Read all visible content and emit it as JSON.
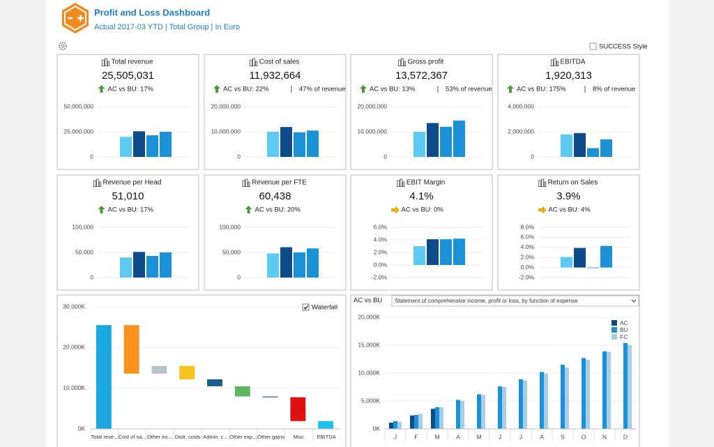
{
  "header": {
    "title": "Profit and Loss Dashboard",
    "subtitle": "Actual 2017-03 YTD | Total Group | In Euro"
  },
  "style_toggle": {
    "label": "SUCCESS Style",
    "checked": false
  },
  "kpis": [
    {
      "title": "Total revenue",
      "value": "25,505,031",
      "comparison": "AC vs BU: 17%",
      "arrow": "up",
      "bars": [
        20000000,
        25500000,
        21500000,
        25000000
      ],
      "colors": [
        "#5ccaf2",
        "#0d4b8a",
        "#1b92d8",
        "#1b92d8"
      ],
      "ylim": [
        0,
        50000000
      ],
      "yticks": [
        0,
        {
          "value": 25000000,
          "label": "25,000,000"
        },
        {
          "value": 50000000,
          "label": "50,000,000"
        }
      ]
    },
    {
      "title": "Cost of sales",
      "value": "11,932,664",
      "comparison": "AC vs BU: 22%",
      "share": "47% of revenue",
      "arrow": "up",
      "bars": [
        10000000,
        11900000,
        9800000,
        10500000
      ],
      "colors": [
        "#5ccaf2",
        "#0d4b8a",
        "#1b92d8",
        "#1b92d8"
      ],
      "ylim": [
        0,
        20000000
      ],
      "yticks": [
        0,
        {
          "value": 10000000,
          "label": "10,000,000"
        },
        {
          "value": 20000000,
          "label": "20,000,000"
        }
      ]
    },
    {
      "title": "Gross profit",
      "value": "13,572,367",
      "comparison": "AC vs BU: 13%",
      "share": "53% of revenue",
      "arrow": "up",
      "bars": [
        10000000,
        13500000,
        12000000,
        14500000
      ],
      "colors": [
        "#5ccaf2",
        "#0d4b8a",
        "#1b92d8",
        "#1b92d8"
      ],
      "ylim": [
        0,
        20000000
      ],
      "yticks": [
        0,
        {
          "value": 10000000,
          "label": "10,000,000"
        },
        {
          "value": 20000000,
          "label": "20,000,000"
        }
      ]
    },
    {
      "title": "EBITDA",
      "value": "1,920,313",
      "comparison": "AC vs BU: 175%",
      "share": "8% of revenue",
      "arrow": "up",
      "bars": [
        1800000,
        1900000,
        700000,
        1400000
      ],
      "colors": [
        "#5ccaf2",
        "#0d4b8a",
        "#1b92d8",
        "#1b92d8"
      ],
      "ylim": [
        0,
        4000000
      ],
      "yticks": [
        0,
        {
          "value": 2000000,
          "label": "2,000,000"
        },
        {
          "value": 4000000,
          "label": "4,000,000"
        }
      ]
    },
    {
      "title": "Revenue per Head",
      "value": "51,010",
      "comparison": "AC vs BU: 17%",
      "arrow": "up",
      "bars": [
        40000,
        51000,
        43000,
        50000
      ],
      "colors": [
        "#5ccaf2",
        "#0d4b8a",
        "#1b92d8",
        "#1b92d8"
      ],
      "ylim": [
        0,
        100000
      ],
      "yticks": [
        0,
        {
          "value": 50000,
          "label": "50,000"
        },
        {
          "value": 100000,
          "label": "100,000"
        }
      ]
    },
    {
      "title": "Revenue per FTE",
      "value": "60,438",
      "comparison": "AC vs BU: 20%",
      "arrow": "up",
      "bars": [
        48000,
        60400,
        50000,
        58000
      ],
      "colors": [
        "#5ccaf2",
        "#0d4b8a",
        "#1b92d8",
        "#1b92d8"
      ],
      "ylim": [
        0,
        100000
      ],
      "yticks": [
        0,
        {
          "value": 50000,
          "label": "50,000"
        },
        {
          "value": 100000,
          "label": "100,000"
        }
      ]
    },
    {
      "title": "EBIT Margin",
      "value": "4.1%",
      "comparison": "AC vs BU: 0%",
      "arrow": "right",
      "bars": [
        3.0,
        4.1,
        4.1,
        4.2
      ],
      "colors": [
        "#5ccaf2",
        "#0d4b8a",
        "#1b92d8",
        "#1b92d8"
      ],
      "ylim": [
        -2,
        6
      ],
      "yticks": [
        {
          "value": -2,
          "label": "-2.0%"
        },
        {
          "value": 0,
          "label": "0.0%"
        },
        {
          "value": 2,
          "label": "2.0%"
        },
        {
          "value": 4,
          "label": "4.0%"
        },
        {
          "value": 6,
          "label": "6.0%"
        }
      ]
    },
    {
      "title": "Return on Sales",
      "value": "3.9%",
      "comparison": "AC vs BU: 4%",
      "arrow": "right",
      "bars": [
        2.1,
        3.9,
        -0.1,
        4.3
      ],
      "colors": [
        "#5ccaf2",
        "#0d4b8a",
        "#1b92d8",
        "#1b92d8"
      ],
      "ylim": [
        -2,
        8
      ],
      "yticks": [
        {
          "value": -2,
          "label": "-2.0%"
        },
        {
          "value": 0,
          "label": "0.0%"
        },
        {
          "value": 2,
          "label": "2.0%"
        },
        {
          "value": 4,
          "label": "4.0%"
        },
        {
          "value": 6,
          "label": "6.0%"
        },
        {
          "value": 8,
          "label": "8.0%"
        }
      ]
    }
  ],
  "waterfall": {
    "toggle": {
      "label": "Waterfall",
      "checked": true
    },
    "categories": [
      "Total reve...",
      "Cost of sa...",
      "Other inc...",
      "Distr. costs",
      "Admin. c...",
      "Other exp...",
      "Other gains",
      "Misc",
      "EBITDA"
    ],
    "values": [
      25505,
      -11933,
      1900,
      -3300,
      -1700,
      -2500,
      -200,
      -5850,
      1920
    ],
    "colors": [
      "#1ba8e0",
      "#f7931e",
      "#b4c3cc",
      "#f7c21b",
      "#1a5e8c",
      "#5cb85c",
      "#5a7a94",
      "#e01010",
      "#1fc0f0"
    ],
    "ylim": [
      0,
      30000
    ],
    "yticks": [
      {
        "value": 0,
        "label": "0K"
      },
      {
        "value": 10000,
        "label": "10,000K"
      },
      {
        "value": 20000,
        "label": "20,000K"
      },
      {
        "value": 30000,
        "label": "30,000K"
      }
    ],
    "grid": true
  },
  "monthly": {
    "view": "AC vs BU",
    "statement": "Statement of comprehensive income, profit or loss, by function of expense",
    "categories": [
      "J",
      "F",
      "M",
      "A",
      "M",
      "J",
      "J",
      "A",
      "S",
      "O",
      "N",
      "D"
    ],
    "series": [
      {
        "name": "AC",
        "color": "#0d4b8a",
        "values": [
          1100,
          2400,
          3600,
          null,
          null,
          null,
          null,
          null,
          null,
          null,
          null,
          null
        ]
      },
      {
        "name": "BU",
        "color": "#1b92d8",
        "values": [
          1400,
          2500,
          3900,
          5200,
          6200,
          7600,
          8900,
          10200,
          11500,
          12700,
          13900,
          15400
        ]
      },
      {
        "name": "FC",
        "color": "#a9cde6",
        "values": [
          1300,
          2700,
          3900,
          5000,
          6100,
          7500,
          8700,
          9900,
          11000,
          12400,
          13800,
          15000
        ]
      }
    ],
    "ylim": [
      0,
      20000
    ],
    "yticks": [
      {
        "value": 0,
        "label": "0K"
      },
      {
        "value": 5000,
        "label": "5,000K"
      },
      {
        "value": 10000,
        "label": "10,000K"
      },
      {
        "value": 15000,
        "label": "15,000K"
      },
      {
        "value": 20000,
        "label": "20,000K"
      }
    ],
    "grid": true
  }
}
